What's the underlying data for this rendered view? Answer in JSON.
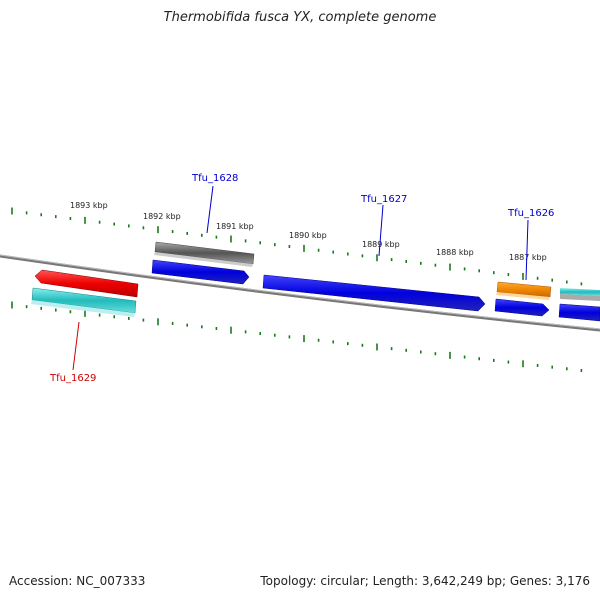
{
  "title": "Thermobifida fusca YX, complete genome",
  "footer": {
    "accession": "Accession: NC_007333",
    "summary": "Topology: circular; Length: 3,642,249 bp; Genes: 3,176"
  },
  "ruler_labels": [
    "1893 kbp",
    "1892 kbp",
    "1891 kbp",
    "1890 kbp",
    "1889 kbp",
    "1888 kbp",
    "1887 kbp"
  ],
  "gene_labels": {
    "tfu_1629": "Tfu_1629",
    "tfu_1628": "Tfu_1628",
    "tfu_1627": "Tfu_1627",
    "tfu_1626": "Tfu_1626"
  },
  "colors": {
    "backbone": "#888888",
    "ruler_tick": "#1a7a1a",
    "forward_cds": "#0000ee",
    "reverse_cds": "#ee0000",
    "gene_track_cyan": "#33cccc",
    "gene_track_gray": "#666666",
    "gene_track_orange": "#ee8800",
    "label_forward": "#0000cc",
    "label_reverse": "#cc0000"
  }
}
